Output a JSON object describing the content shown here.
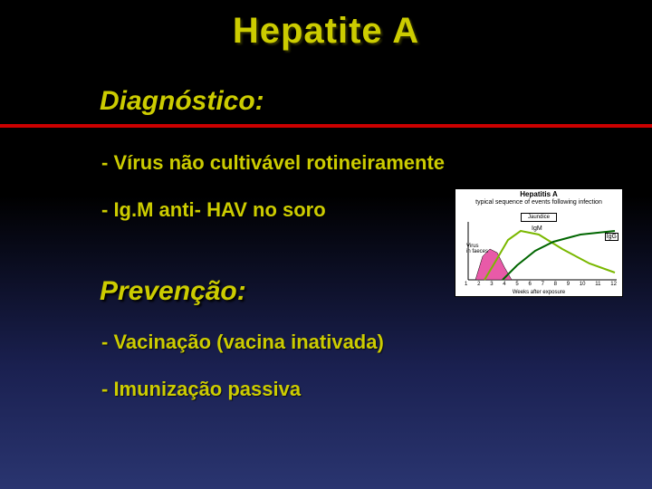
{
  "title": "Hepatite A",
  "sections": {
    "diagnostico": {
      "heading": "Diagnóstico:",
      "bullets": [
        "- Vírus não cultivável rotineiramente",
        "- Ig.M  anti- HAV no soro"
      ]
    },
    "prevencao": {
      "heading": "Prevenção:",
      "bullets": [
        "- Vacinação (vacina inativada)",
        "- Imunização passiva"
      ]
    }
  },
  "colors": {
    "accent_text": "#cccc00",
    "divider": "#cc0000",
    "bg_top": "#000000",
    "bg_bottom": "#2a3570"
  },
  "chart": {
    "title": "Hepatitis A",
    "subtitle": "typical sequence of events following infection",
    "legend": "Jaundice",
    "labels": {
      "igm": "IgM",
      "igg": "IgG",
      "virus_line1": "Virus",
      "virus_line2": "in faeces"
    },
    "x_axis_title": "Weeks after exposure",
    "x_ticks": [
      "1",
      "2",
      "3",
      "4",
      "5",
      "6",
      "7",
      "8",
      "9",
      "10",
      "11",
      "12"
    ],
    "virus_fill": "#e85aa8",
    "igm_color": "#7ab800",
    "igg_color": "#006600",
    "series": {
      "virus": [
        [
          8,
          74
        ],
        [
          14,
          74
        ],
        [
          22,
          48
        ],
        [
          30,
          40
        ],
        [
          38,
          44
        ],
        [
          46,
          60
        ],
        [
          54,
          74
        ],
        [
          8,
          74
        ]
      ],
      "igm": [
        [
          24,
          74
        ],
        [
          36,
          54
        ],
        [
          50,
          30
        ],
        [
          64,
          20
        ],
        [
          84,
          24
        ],
        [
          110,
          40
        ],
        [
          140,
          56
        ],
        [
          168,
          66
        ]
      ],
      "igg": [
        [
          44,
          74
        ],
        [
          60,
          58
        ],
        [
          80,
          42
        ],
        [
          100,
          32
        ],
        [
          130,
          24
        ],
        [
          168,
          20
        ]
      ]
    }
  }
}
